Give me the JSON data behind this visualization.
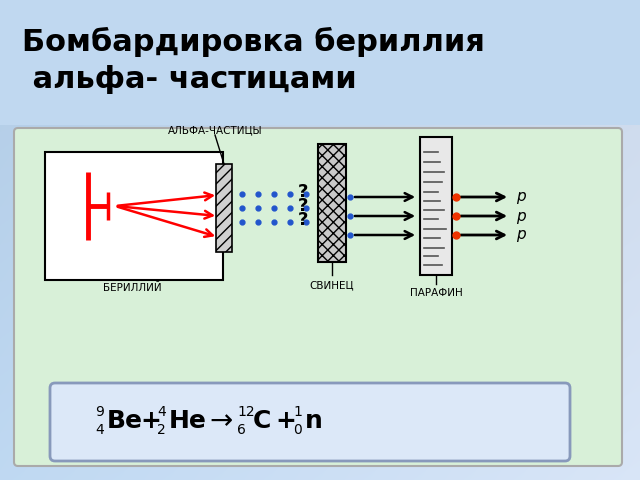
{
  "title_line1": "Бомбардировка бериллия",
  "title_line2": " альфа- частицами",
  "panel_color": "#d8f0d8",
  "panel_border": "#aaaaaa",
  "formula_bg": "#dce8f8",
  "formula_border": "#8899bb",
  "label_berylliy": "БЕРИЛЛИЙ",
  "label_svinets": "СВИНЕЦ",
  "label_parafin": "ПАРАФИН",
  "label_alpha": "АЛЬФА-ЧАСТИЦЫ",
  "bg_top_left": "#b8d4f0",
  "bg_top_right": "#d0e4f8",
  "bg_bot_left": "#8ab4e0",
  "bg_bot_right": "#b0ccec"
}
